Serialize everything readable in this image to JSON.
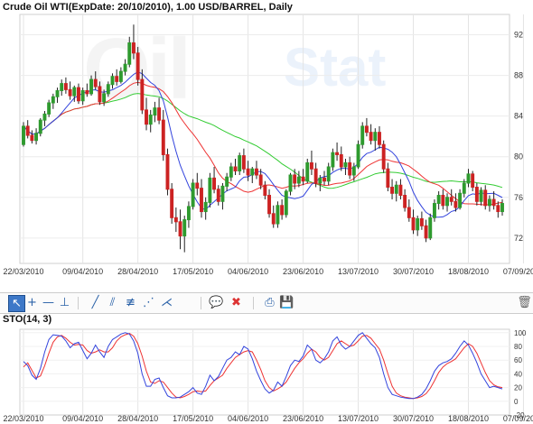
{
  "header": {
    "title": "Crude Oil WTI(ExpDate: 20/10/2010), 1.00 USD/BAREEL, Daily"
  },
  "watermark": {
    "brand_left": "Oil",
    "brand_right": "Stat"
  },
  "indicator": {
    "title": "STO(14, 3)"
  },
  "toolbar": {
    "tools": [
      {
        "name": "cursor-tool-button",
        "glyph": "↖",
        "active": true
      },
      {
        "name": "crosshair-tool-button",
        "glyph": "+"
      },
      {
        "name": "horizontal-line-tool-button",
        "glyph": "—"
      },
      {
        "name": "vertical-line-tool-button",
        "glyph": "⊥"
      },
      {
        "name": "trend-line-tool-button",
        "glyph": "╱"
      },
      {
        "name": "channel-tool-button",
        "glyph": "⫽"
      },
      {
        "name": "fibonacci-tool-button",
        "glyph": "≢"
      },
      {
        "name": "fan-tool-button",
        "glyph": "⋰"
      },
      {
        "name": "andrews-pitchfork-tool-button",
        "glyph": "⋌"
      },
      {
        "name": "comment-tool-button",
        "glyph": "💬"
      },
      {
        "name": "delete-tool-button",
        "glyph": "✖"
      },
      {
        "name": "print-button",
        "glyph": "⎙"
      },
      {
        "name": "save-button",
        "glyph": "💾"
      },
      {
        "name": "trash-button",
        "glyph": "🗑"
      }
    ]
  },
  "colors": {
    "bull": "#2e9a2e",
    "bear": "#cc2222",
    "ma_fast": "#3344dd",
    "ma_mid": "#ee3333",
    "ma_slow": "#33cc33",
    "sto_k": "#3344dd",
    "sto_d": "#ee3333"
  },
  "chart_data": [
    {
      "type": "candlestick",
      "title": "Crude Oil WTI(ExpDate: 20/10/2010), 1.00 USD/BARREL, Daily",
      "x_tick_labels": [
        "22/03/2010",
        "09/04/2010",
        "28/04/2010",
        "17/05/2010",
        "04/06/2010",
        "23/06/2010",
        "13/07/2010",
        "30/07/2010",
        "18/08/2010",
        "07/09/2010"
      ],
      "x_tick_index": [
        0,
        14,
        27,
        40,
        53,
        66,
        79,
        92,
        105,
        118
      ],
      "y_ticks": [
        72,
        76,
        80,
        84,
        88,
        92
      ],
      "ylim": [
        69.5,
        94
      ],
      "grid": true,
      "ohlc": [
        [
          81.2,
          83.4,
          81.0,
          83.0
        ],
        [
          83.0,
          83.6,
          81.8,
          82.1
        ],
        [
          82.1,
          82.6,
          81.3,
          81.6
        ],
        [
          81.6,
          82.8,
          81.2,
          82.3
        ],
        [
          82.3,
          83.8,
          82.0,
          83.6
        ],
        [
          83.6,
          84.5,
          83.0,
          84.2
        ],
        [
          84.2,
          85.6,
          83.9,
          85.3
        ],
        [
          85.3,
          86.2,
          84.7,
          85.9
        ],
        [
          85.9,
          86.8,
          85.3,
          86.5
        ],
        [
          86.5,
          87.6,
          86.0,
          87.2
        ],
        [
          87.2,
          87.8,
          86.2,
          86.6
        ],
        [
          86.6,
          87.4,
          85.6,
          86.0
        ],
        [
          86.0,
          87.0,
          85.4,
          86.8
        ],
        [
          86.8,
          87.2,
          85.2,
          85.5
        ],
        [
          85.5,
          86.8,
          85.1,
          86.5
        ],
        [
          86.5,
          87.2,
          85.9,
          86.2
        ],
        [
          86.2,
          88.0,
          86.0,
          87.6
        ],
        [
          87.6,
          88.4,
          86.6,
          86.9
        ],
        [
          86.9,
          87.4,
          85.1,
          85.4
        ],
        [
          85.4,
          86.6,
          85.0,
          86.2
        ],
        [
          86.2,
          87.4,
          85.9,
          87.1
        ],
        [
          87.1,
          88.2,
          86.7,
          87.9
        ],
        [
          87.9,
          88.6,
          87.0,
          87.4
        ],
        [
          87.4,
          88.8,
          87.2,
          88.4
        ],
        [
          88.4,
          89.6,
          88.0,
          89.1
        ],
        [
          89.1,
          91.8,
          88.8,
          91.2
        ],
        [
          91.2,
          93.0,
          89.6,
          90.2
        ],
        [
          90.2,
          90.8,
          87.0,
          87.6
        ],
        [
          87.6,
          88.6,
          84.2,
          84.6
        ],
        [
          84.6,
          85.8,
          82.6,
          83.2
        ],
        [
          83.2,
          84.6,
          82.4,
          84.1
        ],
        [
          84.1,
          85.4,
          83.4,
          84.8
        ],
        [
          84.8,
          85.8,
          83.2,
          83.6
        ],
        [
          83.6,
          84.6,
          79.6,
          80.2
        ],
        [
          80.2,
          80.8,
          76.2,
          76.8
        ],
        [
          76.8,
          77.4,
          73.4,
          74.0
        ],
        [
          74.0,
          75.0,
          72.6,
          73.6
        ],
        [
          73.6,
          74.8,
          70.9,
          72.2
        ],
        [
          72.2,
          74.2,
          70.6,
          73.8
        ],
        [
          73.8,
          75.6,
          73.0,
          75.1
        ],
        [
          75.1,
          77.8,
          74.8,
          77.4
        ],
        [
          77.4,
          78.4,
          76.2,
          76.9
        ],
        [
          76.9,
          77.8,
          74.0,
          74.6
        ],
        [
          74.6,
          76.0,
          73.8,
          75.5
        ],
        [
          75.5,
          78.4,
          75.0,
          77.9
        ],
        [
          77.9,
          79.0,
          76.4,
          76.8
        ],
        [
          76.8,
          77.2,
          75.2,
          75.6
        ],
        [
          75.6,
          77.4,
          74.8,
          77.1
        ],
        [
          77.1,
          78.4,
          76.6,
          78.0
        ],
        [
          78.0,
          79.4,
          77.6,
          79.0
        ],
        [
          79.0,
          79.8,
          78.2,
          78.6
        ],
        [
          78.6,
          80.4,
          78.2,
          80.1
        ],
        [
          80.1,
          80.8,
          78.4,
          78.8
        ],
        [
          78.8,
          79.6,
          77.6,
          78.2
        ],
        [
          78.2,
          79.0,
          77.4,
          78.8
        ],
        [
          78.8,
          79.6,
          77.8,
          78.2
        ],
        [
          78.2,
          78.8,
          76.8,
          77.2
        ],
        [
          77.2,
          77.6,
          75.8,
          76.2
        ],
        [
          76.2,
          76.8,
          74.0,
          74.4
        ],
        [
          74.4,
          75.2,
          73.0,
          73.4
        ],
        [
          73.4,
          75.6,
          73.0,
          75.2
        ],
        [
          75.2,
          75.8,
          73.8,
          74.3
        ],
        [
          74.3,
          76.8,
          74.0,
          76.6
        ],
        [
          76.6,
          78.4,
          76.2,
          78.2
        ],
        [
          78.2,
          78.8,
          76.8,
          77.4
        ],
        [
          77.4,
          78.6,
          77.0,
          78.0
        ],
        [
          78.0,
          78.8,
          77.2,
          77.6
        ],
        [
          77.6,
          79.8,
          77.4,
          79.4
        ],
        [
          79.4,
          80.6,
          78.2,
          78.8
        ],
        [
          78.8,
          79.4,
          77.0,
          77.4
        ],
        [
          77.4,
          78.2,
          76.6,
          77.9
        ],
        [
          77.9,
          78.6,
          77.2,
          77.6
        ],
        [
          77.6,
          79.4,
          77.2,
          79.0
        ],
        [
          79.0,
          80.8,
          78.6,
          80.4
        ],
        [
          80.4,
          81.4,
          79.6,
          80.2
        ],
        [
          80.2,
          81.0,
          78.6,
          79.0
        ],
        [
          79.0,
          79.8,
          78.2,
          79.4
        ],
        [
          79.4,
          80.0,
          77.8,
          78.2
        ],
        [
          78.2,
          79.4,
          77.6,
          79.0
        ],
        [
          79.0,
          81.6,
          78.8,
          81.2
        ],
        [
          81.2,
          83.4,
          80.8,
          83.0
        ],
        [
          83.0,
          83.8,
          82.0,
          82.4
        ],
        [
          82.4,
          83.2,
          81.2,
          81.6
        ],
        [
          81.6,
          82.8,
          80.6,
          82.4
        ],
        [
          82.4,
          83.0,
          80.8,
          81.2
        ],
        [
          81.2,
          81.6,
          78.4,
          78.8
        ],
        [
          78.8,
          79.4,
          76.6,
          77.0
        ],
        [
          77.0,
          77.8,
          75.8,
          76.4
        ],
        [
          76.4,
          77.6,
          75.6,
          77.2
        ],
        [
          77.2,
          77.8,
          75.8,
          76.2
        ],
        [
          76.2,
          76.8,
          74.6,
          75.0
        ],
        [
          75.0,
          75.8,
          73.6,
          74.0
        ],
        [
          74.0,
          74.8,
          72.4,
          72.8
        ],
        [
          72.8,
          74.2,
          72.2,
          73.9
        ],
        [
          73.9,
          74.6,
          72.8,
          73.2
        ],
        [
          73.2,
          73.8,
          71.6,
          72.0
        ],
        [
          72.0,
          74.4,
          71.8,
          74.0
        ],
        [
          74.0,
          75.8,
          73.6,
          75.4
        ],
        [
          75.4,
          76.6,
          74.8,
          76.2
        ],
        [
          76.2,
          76.8,
          74.8,
          75.2
        ],
        [
          75.2,
          76.4,
          74.6,
          76.0
        ],
        [
          76.0,
          76.8,
          75.2,
          75.6
        ],
        [
          75.6,
          76.4,
          74.6,
          75.0
        ],
        [
          75.0,
          76.8,
          74.8,
          76.4
        ],
        [
          76.4,
          77.8,
          76.0,
          77.4
        ],
        [
          77.4,
          78.8,
          77.0,
          78.3
        ],
        [
          78.3,
          78.6,
          76.6,
          77.0
        ],
        [
          77.0,
          77.4,
          75.2,
          75.6
        ],
        [
          75.6,
          77.0,
          75.2,
          76.7
        ],
        [
          76.7,
          77.2,
          74.8,
          75.2
        ],
        [
          75.2,
          76.2,
          74.6,
          75.8
        ],
        [
          75.8,
          76.6,
          74.8,
          75.2
        ],
        [
          75.2,
          75.6,
          74.0,
          74.6
        ],
        [
          74.6,
          75.8,
          74.2,
          75.4
        ]
      ]
    },
    {
      "type": "line",
      "title": "STO(14, 3)",
      "y_ticks": [
        -20,
        0,
        20,
        40,
        60,
        80,
        100
      ],
      "ylim": [
        -20,
        105
      ],
      "series": [
        {
          "name": "%K",
          "values": [
            58,
            52,
            38,
            32,
            48,
            72,
            90,
            97,
            96,
            95,
            88,
            78,
            84,
            86,
            74,
            62,
            70,
            82,
            72,
            64,
            80,
            90,
            94,
            98,
            100,
            98,
            88,
            70,
            40,
            22,
            22,
            32,
            34,
            20,
            8,
            5,
            5,
            6,
            10,
            14,
            20,
            12,
            10,
            22,
            38,
            30,
            36,
            48,
            60,
            64,
            72,
            68,
            80,
            76,
            62,
            44,
            30,
            18,
            12,
            16,
            28,
            22,
            36,
            52,
            60,
            58,
            66,
            82,
            76,
            60,
            56,
            62,
            72,
            88,
            94,
            82,
            76,
            80,
            88,
            96,
            100,
            92,
            84,
            78,
            64,
            40,
            20,
            10,
            8,
            6,
            5,
            4,
            4,
            6,
            10,
            18,
            30,
            44,
            52,
            56,
            58,
            62,
            70,
            80,
            88,
            82,
            70,
            56,
            40,
            30,
            20,
            22,
            20,
            18
          ]
        },
        {
          "name": "%D",
          "values": [
            50,
            56,
            45,
            34,
            37,
            52,
            70,
            86,
            94,
            96,
            92,
            86,
            82,
            83,
            82,
            74,
            70,
            72,
            75,
            72,
            72,
            78,
            88,
            94,
            97,
            99,
            95,
            84,
            66,
            44,
            28,
            26,
            30,
            28,
            20,
            12,
            6,
            5,
            7,
            10,
            14,
            15,
            14,
            15,
            23,
            30,
            34,
            38,
            48,
            56,
            64,
            68,
            72,
            74,
            72,
            60,
            46,
            30,
            20,
            15,
            18,
            22,
            28,
            38,
            48,
            56,
            62,
            70,
            76,
            72,
            64,
            60,
            64,
            74,
            84,
            88,
            84,
            80,
            82,
            88,
            95,
            96,
            92,
            84,
            76,
            60,
            40,
            22,
            12,
            8,
            6,
            5,
            4,
            5,
            7,
            11,
            19,
            30,
            42,
            50,
            55,
            58,
            62,
            70,
            78,
            84,
            80,
            70,
            56,
            42,
            30,
            24,
            21,
            20
          ]
        }
      ]
    }
  ]
}
